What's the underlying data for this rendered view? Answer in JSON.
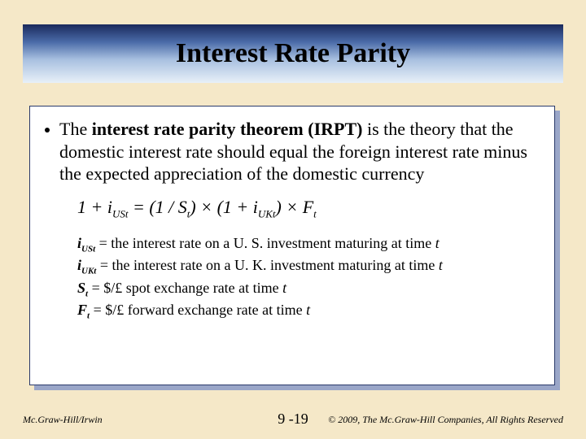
{
  "title": "Interest Rate Parity",
  "bullet": {
    "prefix": "The ",
    "bold": "interest rate parity theorem (IRPT)",
    "rest": " is the theory that the domestic interest rate should equal the foreign interest rate minus the expected appreciation of the domestic currency"
  },
  "formula": {
    "lhs_open": "1 + ",
    "lhs_sym": "i",
    "lhs_sub": "USt",
    "eq": " = (1 / ",
    "s_sym": "S",
    "s_sub": "t",
    "mid1": ") × (1 + ",
    "uk_sym": "i",
    "uk_sub": "UKt",
    "mid2": ") × ",
    "f_sym": "F",
    "f_sub": "t"
  },
  "defs": [
    {
      "sym": "i",
      "sub": "USt",
      "text": " = the interest rate on a U. S. investment maturing at time ",
      "tail_ital": "t"
    },
    {
      "sym": "i",
      "sub": "UKt",
      "text": " = the interest rate on a U. K. investment maturing at time ",
      "tail_ital": "t"
    },
    {
      "sym": "S",
      "sub": "t",
      "text": " = $/£ spot exchange rate at time ",
      "tail_ital": "t"
    },
    {
      "sym": "F",
      "sub": "t",
      "text": " = $/£ forward exchange rate at time ",
      "tail_ital": "t"
    }
  ],
  "footer": {
    "left": "Mc.Graw-Hill/Irwin",
    "center": "9 -19",
    "right": "© 2009, The Mc.Graw-Hill Companies, All Rights Reserved"
  },
  "colors": {
    "slide_bg": "#f5e8c8",
    "box_border": "#2a3a6a",
    "box_shadow": "#9aa6c8"
  }
}
